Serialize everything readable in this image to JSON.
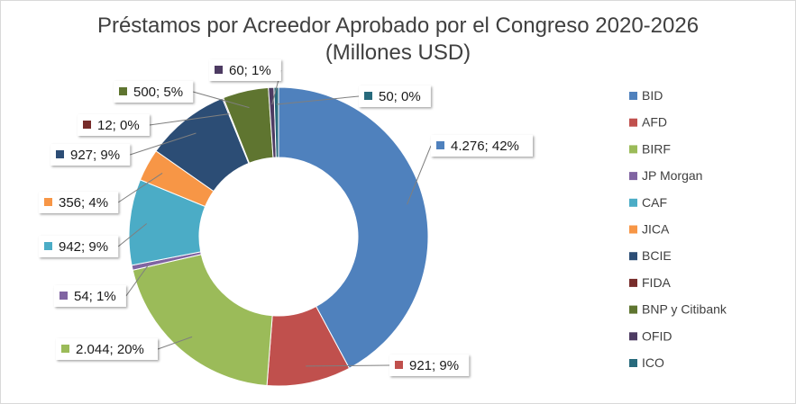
{
  "chart_data": {
    "type": "donut",
    "title": "Préstamos por Acreedor Aprobado por el Congreso 2020-2026",
    "subtitle": "(Millones USD)",
    "legend_position": "right",
    "series": [
      {
        "name": "BID",
        "value": 4276,
        "label": "4.276; 42%",
        "color": "#4f81bd"
      },
      {
        "name": "AFD",
        "value": 921,
        "label": "921; 9%",
        "color": "#c0504d"
      },
      {
        "name": "BIRF",
        "value": 2044,
        "label": "2.044; 20%",
        "color": "#9bbb59"
      },
      {
        "name": "JP Morgan",
        "value": 54,
        "label": "54; 1%",
        "color": "#8064a2"
      },
      {
        "name": "CAF",
        "value": 942,
        "label": "942; 9%",
        "color": "#4bacc6"
      },
      {
        "name": "JICA",
        "value": 356,
        "label": "356; 4%",
        "color": "#f79646"
      },
      {
        "name": "BCIE",
        "value": 927,
        "label": "927; 9%",
        "color": "#2c4d75"
      },
      {
        "name": "FIDA",
        "value": 12,
        "label": "12; 0%",
        "color": "#772c2a"
      },
      {
        "name": "BNP y Citibank",
        "value": 500,
        "label": "500; 5%",
        "color": "#5f7530"
      },
      {
        "name": "OFID",
        "value": 60,
        "label": "60; 1%",
        "color": "#4d3b62"
      },
      {
        "name": "ICO",
        "value": 50,
        "label": "50; 0%",
        "color": "#276a7c"
      }
    ]
  }
}
